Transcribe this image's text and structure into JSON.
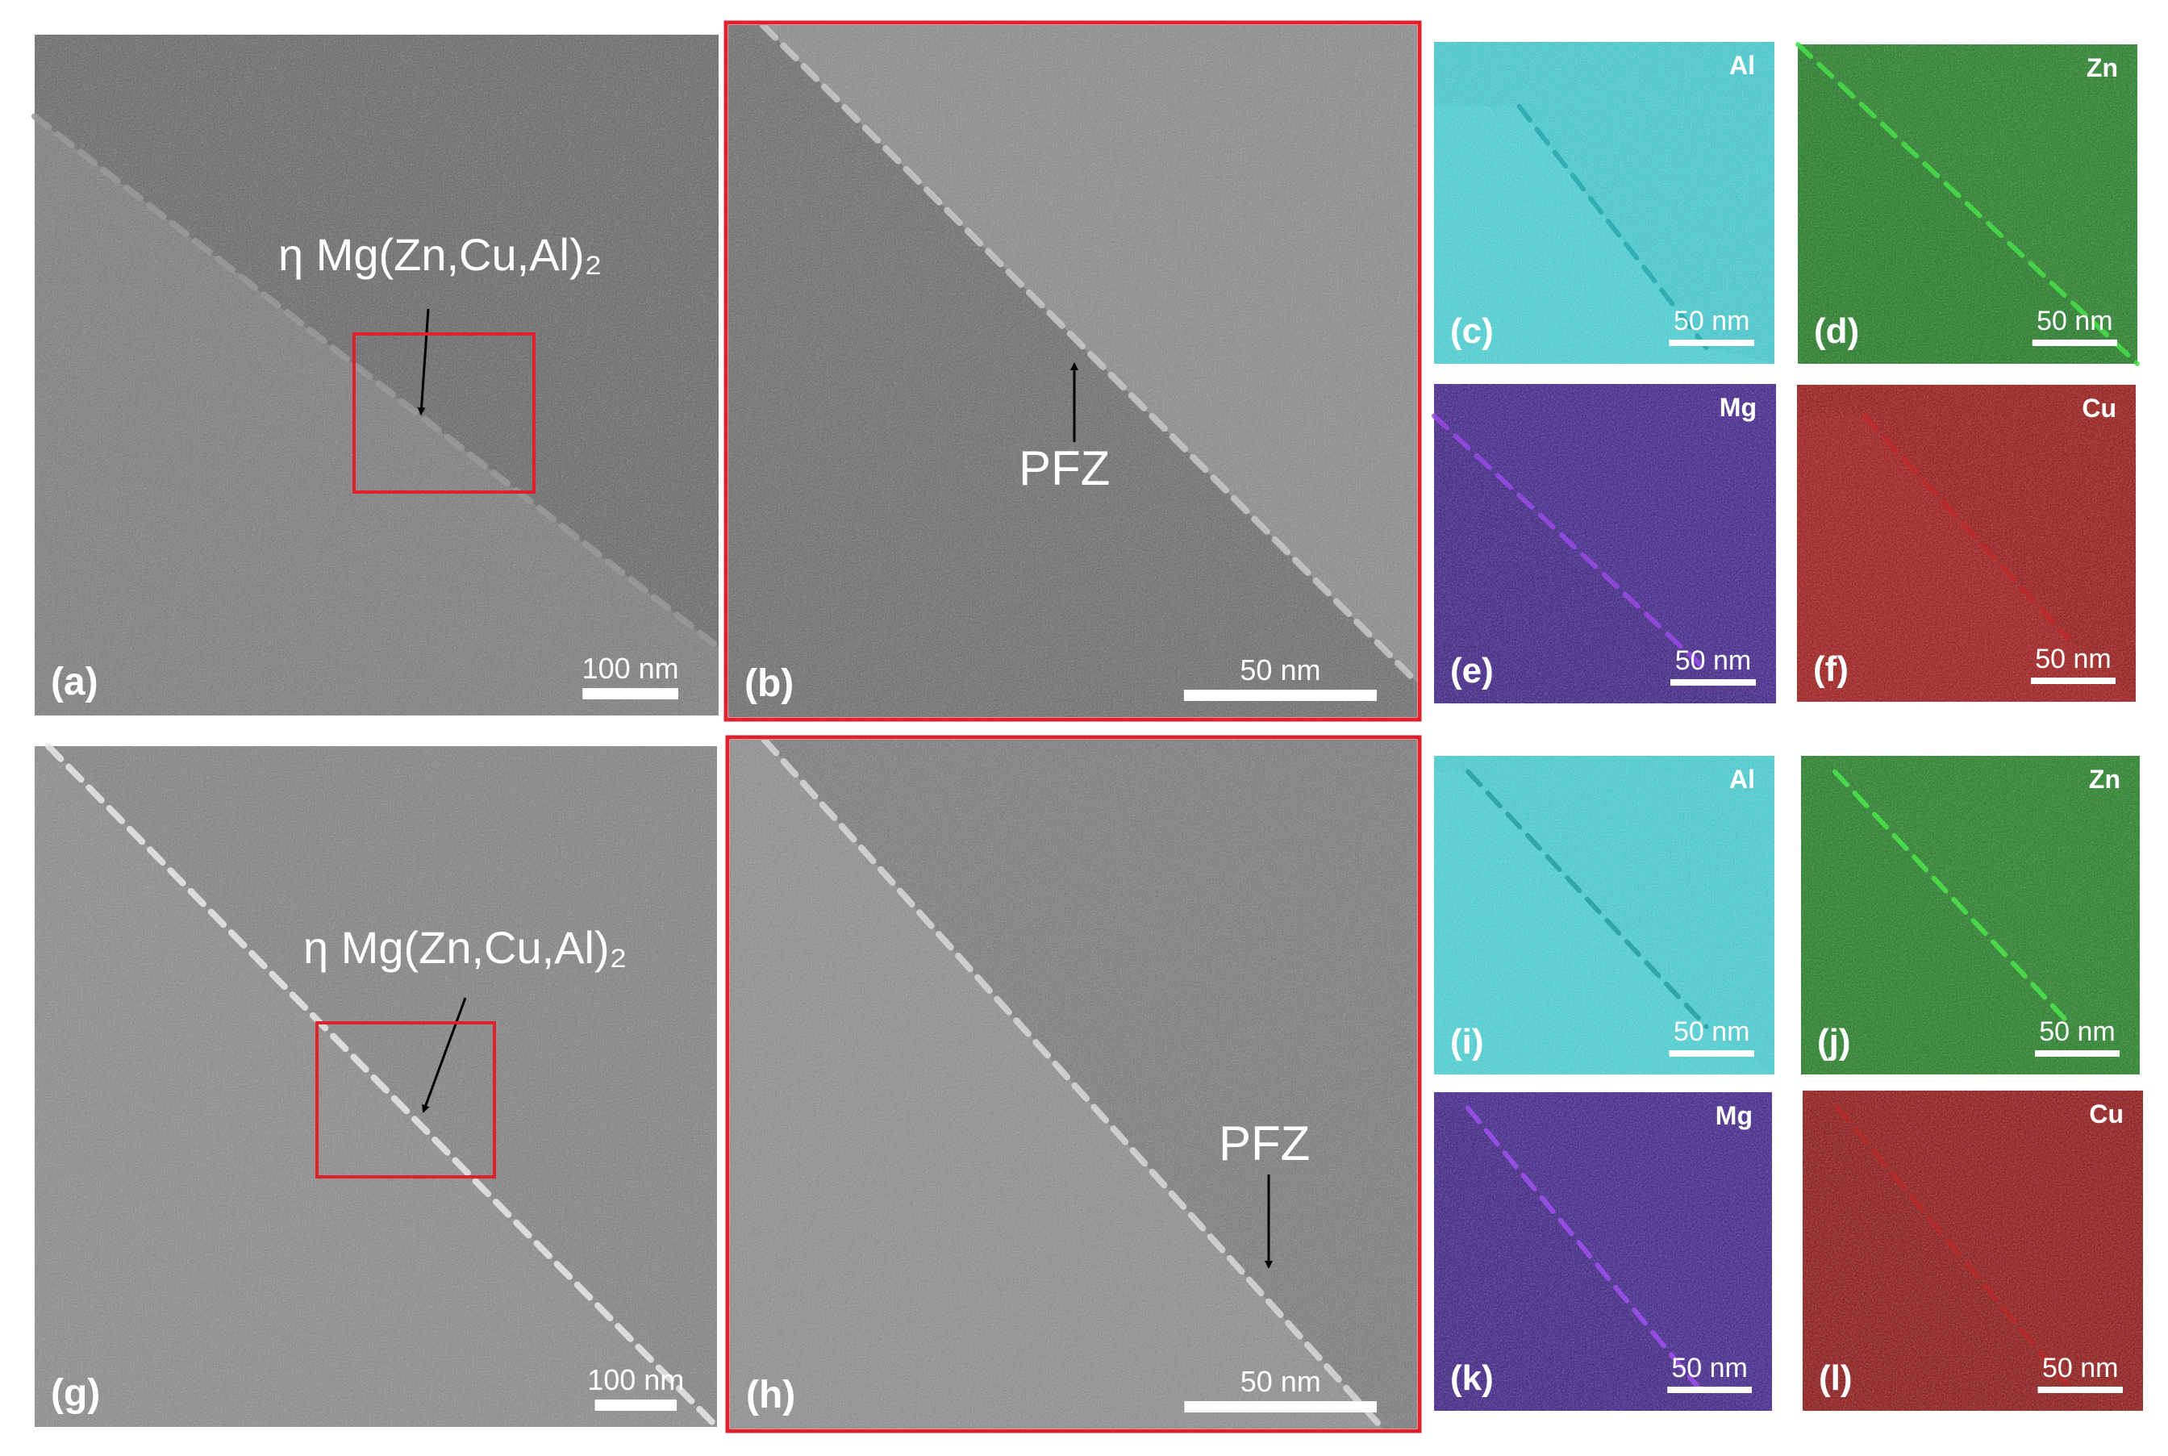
{
  "panels": [
    {
      "label": "(a)",
      "scale_bar": "100 nm",
      "annotation": "η Mg(Zn,Cu,Al)₂"
    },
    {
      "label": "(b)",
      "scale_bar": "50 nm",
      "annotation": "PFZ"
    },
    {
      "label": "(c)",
      "scale_bar": "50 nm",
      "element": "Al"
    },
    {
      "label": "(d)",
      "scale_bar": "50 nm",
      "element": "Zn"
    },
    {
      "label": "(e)",
      "scale_bar": "50 nm",
      "element": "Mg"
    },
    {
      "label": "(f)",
      "scale_bar": "50 nm",
      "element": "Cu"
    },
    {
      "label": "(g)",
      "scale_bar": "100 nm",
      "annotation": "η Mg(Zn,Cu,Al)₂"
    },
    {
      "label": "(h)",
      "scale_bar": "50 nm",
      "annotation": "PFZ"
    },
    {
      "label": "(i)",
      "scale_bar": "50 nm",
      "element": "Al"
    },
    {
      "label": "(j)",
      "scale_bar": "50 nm",
      "element": "Zn"
    },
    {
      "label": "(k)",
      "scale_bar": "50 nm",
      "element": "Mg"
    },
    {
      "label": "(l)",
      "scale_bar": "50 nm",
      "element": "Cu"
    }
  ]
}
